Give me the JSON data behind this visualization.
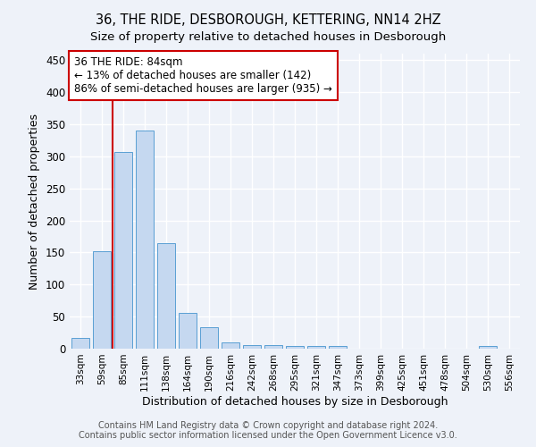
{
  "title": "36, THE RIDE, DESBOROUGH, KETTERING, NN14 2HZ",
  "subtitle": "Size of property relative to detached houses in Desborough",
  "xlabel": "Distribution of detached houses by size in Desborough",
  "ylabel": "Number of detached properties",
  "categories": [
    "33sqm",
    "59sqm",
    "85sqm",
    "111sqm",
    "138sqm",
    "164sqm",
    "190sqm",
    "216sqm",
    "242sqm",
    "268sqm",
    "295sqm",
    "321sqm",
    "347sqm",
    "373sqm",
    "399sqm",
    "425sqm",
    "451sqm",
    "478sqm",
    "504sqm",
    "530sqm",
    "556sqm"
  ],
  "values": [
    17,
    152,
    306,
    340,
    165,
    56,
    34,
    10,
    6,
    5,
    4,
    4,
    4,
    0,
    0,
    0,
    0,
    0,
    0,
    4,
    0
  ],
  "bar_color": "#c5d8f0",
  "bar_edge_color": "#5a9fd4",
  "annotation_box_text": "36 THE RIDE: 84sqm\n← 13% of detached houses are smaller (142)\n86% of semi-detached houses are larger (935) →",
  "red_line_color": "#cc0000",
  "box_edge_color": "#cc0000",
  "ylim": [
    0,
    460
  ],
  "yticks": [
    0,
    50,
    100,
    150,
    200,
    250,
    300,
    350,
    400,
    450
  ],
  "background_color": "#eef2f9",
  "grid_color": "#ffffff",
  "title_fontsize": 10.5,
  "subtitle_fontsize": 9.5,
  "footer_text": "Contains HM Land Registry data © Crown copyright and database right 2024.\nContains public sector information licensed under the Open Government Licence v3.0.",
  "footer_fontsize": 7.0
}
